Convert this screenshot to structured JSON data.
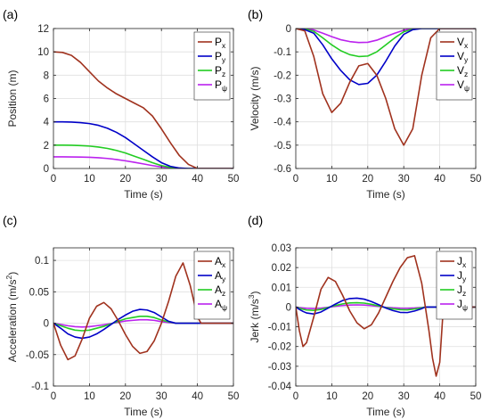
{
  "chart_data": [
    {
      "type": "line",
      "panel_label": "(a)",
      "xlabel": "Time (s)",
      "ylabel": "Position (m)",
      "xlim": [
        0,
        50
      ],
      "ylim": [
        0,
        12
      ],
      "xticks": [
        0,
        10,
        20,
        30,
        40,
        50
      ],
      "yticks": [
        0,
        2,
        4,
        6,
        8,
        10,
        12
      ],
      "grid": true,
      "legend_position": "top-right",
      "x": [
        0,
        2.5,
        5,
        7.5,
        10,
        12.5,
        15,
        17.5,
        20,
        22.5,
        25,
        27.5,
        30,
        32.5,
        35,
        37.5,
        40,
        45,
        50
      ],
      "series": [
        {
          "name_main": "P",
          "name_sub": "x",
          "color": "#A0321E",
          "values": [
            10.0,
            9.95,
            9.7,
            9.1,
            8.3,
            7.5,
            6.9,
            6.4,
            6.0,
            5.6,
            5.2,
            4.5,
            3.4,
            2.2,
            1.1,
            0.35,
            0.0,
            0.0,
            0.0
          ]
        },
        {
          "name_main": "P",
          "name_sub": "y",
          "color": "#0000C8",
          "values": [
            4.0,
            4.0,
            3.98,
            3.93,
            3.85,
            3.7,
            3.45,
            3.1,
            2.65,
            2.1,
            1.55,
            1.0,
            0.5,
            0.18,
            0.04,
            0.0,
            0.0,
            0.0,
            0.0
          ]
        },
        {
          "name_main": "P",
          "name_sub": "z",
          "color": "#22CC22",
          "values": [
            2.0,
            2.0,
            1.99,
            1.96,
            1.92,
            1.84,
            1.72,
            1.55,
            1.33,
            1.05,
            0.78,
            0.5,
            0.25,
            0.09,
            0.02,
            0.0,
            0.0,
            0.0,
            0.0
          ]
        },
        {
          "name_main": "P",
          "name_sub": "ψ",
          "color": "#BB22EE",
          "values": [
            1.0,
            1.0,
            0.99,
            0.98,
            0.96,
            0.92,
            0.86,
            0.77,
            0.66,
            0.53,
            0.39,
            0.25,
            0.13,
            0.05,
            0.01,
            0.0,
            0.0,
            0.0,
            0.0
          ]
        }
      ]
    },
    {
      "type": "line",
      "panel_label": "(b)",
      "xlabel": "Time (s)",
      "ylabel": "Velocity (m/s)",
      "xlim": [
        0,
        50
      ],
      "ylim": [
        -0.6,
        0
      ],
      "xticks": [
        0,
        10,
        20,
        30,
        40,
        50
      ],
      "yticks": [
        -0.6,
        -0.5,
        -0.4,
        -0.3,
        -0.2,
        -0.1,
        0
      ],
      "grid": true,
      "legend_position": "top-right",
      "x": [
        0,
        2.5,
        5,
        7.5,
        10,
        12.5,
        15,
        17.5,
        20,
        22.5,
        25,
        27.5,
        30,
        32.5,
        35,
        37.5,
        40,
        45,
        50
      ],
      "series": [
        {
          "name_main": "V",
          "name_sub": "x",
          "color": "#A0321E",
          "values": [
            0,
            -0.01,
            -0.12,
            -0.28,
            -0.36,
            -0.32,
            -0.23,
            -0.16,
            -0.15,
            -0.2,
            -0.3,
            -0.43,
            -0.5,
            -0.43,
            -0.2,
            -0.04,
            0,
            0,
            0
          ]
        },
        {
          "name_main": "V",
          "name_sub": "y",
          "color": "#0000C8",
          "values": [
            0,
            -0.005,
            -0.02,
            -0.07,
            -0.13,
            -0.18,
            -0.22,
            -0.24,
            -0.235,
            -0.2,
            -0.14,
            -0.075,
            -0.025,
            -0.005,
            0,
            0,
            0,
            0,
            0
          ]
        },
        {
          "name_main": "V",
          "name_sub": "z",
          "color": "#22CC22",
          "values": [
            0,
            -0.002,
            -0.012,
            -0.04,
            -0.07,
            -0.095,
            -0.112,
            -0.12,
            -0.118,
            -0.1,
            -0.07,
            -0.04,
            -0.014,
            -0.003,
            0,
            0,
            0,
            0,
            0
          ]
        },
        {
          "name_main": "V",
          "name_sub": "ψ",
          "color": "#BB22EE",
          "values": [
            0,
            -0.001,
            -0.006,
            -0.02,
            -0.035,
            -0.048,
            -0.056,
            -0.06,
            -0.059,
            -0.05,
            -0.035,
            -0.02,
            -0.007,
            -0.001,
            0,
            0,
            0,
            0,
            0
          ]
        }
      ]
    },
    {
      "type": "line",
      "panel_label": "(c)",
      "xlabel": "Time (s)",
      "ylabel_main": "Acceleration (m/s",
      "ylabel_sup": "2",
      "ylabel_end": ")",
      "xlim": [
        0,
        50
      ],
      "ylim": [
        -0.1,
        0.12
      ],
      "xticks": [
        0,
        10,
        20,
        30,
        40,
        50
      ],
      "yticks": [
        -0.1,
        -0.05,
        0,
        0.05,
        0.1
      ],
      "grid": true,
      "legend_position": "top-right",
      "x": [
        0,
        2,
        4,
        6,
        8,
        10,
        12,
        14,
        16,
        18,
        20,
        22,
        24,
        26,
        28,
        30,
        32,
        34,
        36,
        38,
        40,
        41,
        45,
        50
      ],
      "series": [
        {
          "name_main": "A",
          "name_sub": "x",
          "color": "#A0321E",
          "values": [
            0,
            -0.035,
            -0.058,
            -0.052,
            -0.025,
            0.008,
            0.027,
            0.033,
            0.023,
            0.004,
            -0.018,
            -0.037,
            -0.048,
            -0.045,
            -0.028,
            0.0,
            0.035,
            0.075,
            0.096,
            0.06,
            0.01,
            0.0,
            0.0,
            0.0
          ]
        },
        {
          "name_main": "A",
          "name_sub": "y",
          "color": "#0000C8",
          "values": [
            0,
            -0.008,
            -0.017,
            -0.022,
            -0.024,
            -0.022,
            -0.017,
            -0.01,
            -0.002,
            0.006,
            0.013,
            0.019,
            0.022,
            0.021,
            0.017,
            0.01,
            0.003,
            0.0,
            0.0,
            0.0,
            0.0,
            0.0,
            0.0,
            0.0
          ]
        },
        {
          "name_main": "A",
          "name_sub": "z",
          "color": "#22CC22",
          "values": [
            0,
            -0.004,
            -0.008,
            -0.011,
            -0.012,
            -0.011,
            -0.008,
            -0.005,
            -0.001,
            0.003,
            0.007,
            0.009,
            0.011,
            0.011,
            0.009,
            0.005,
            0.002,
            0.0,
            0.0,
            0.0,
            0.0,
            0.0,
            0.0,
            0.0
          ]
        },
        {
          "name_main": "A",
          "name_sub": "ψ",
          "color": "#BB22EE",
          "values": [
            0,
            -0.002,
            -0.004,
            -0.0055,
            -0.006,
            -0.0055,
            -0.004,
            -0.0025,
            -0.0005,
            0.0015,
            0.0035,
            0.0045,
            0.0055,
            0.0055,
            0.0045,
            0.0025,
            0.001,
            0.0,
            0.0,
            0.0,
            0.0,
            0.0,
            0.0,
            0.0
          ]
        }
      ]
    },
    {
      "type": "line",
      "panel_label": "(d)",
      "xlabel": "Time (s)",
      "ylabel_main": "Jerk (m/s",
      "ylabel_sup": "3",
      "ylabel_end": ")",
      "xlim": [
        0,
        50
      ],
      "ylim": [
        -0.04,
        0.03
      ],
      "xticks": [
        0,
        10,
        20,
        30,
        40,
        50
      ],
      "yticks": [
        -0.04,
        -0.03,
        -0.02,
        -0.01,
        0,
        0.01,
        0.02,
        0.03
      ],
      "grid": true,
      "legend_position": "top-right",
      "x": [
        0,
        1,
        2,
        3,
        5,
        7,
        9,
        11,
        13,
        15,
        17,
        19,
        21,
        23,
        25,
        27,
        29,
        31,
        33,
        35,
        36,
        37,
        38,
        39,
        40,
        41,
        45,
        50
      ],
      "series": [
        {
          "name_main": "J",
          "name_sub": "x",
          "color": "#A0321E",
          "values": [
            0,
            -0.012,
            -0.02,
            -0.018,
            -0.005,
            0.009,
            0.015,
            0.013,
            0.006,
            -0.002,
            -0.008,
            -0.011,
            -0.009,
            -0.003,
            0.005,
            0.013,
            0.02,
            0.025,
            0.026,
            0.012,
            0.0,
            -0.012,
            -0.026,
            -0.035,
            -0.028,
            0.0,
            0.0,
            0.0
          ]
        },
        {
          "name_main": "J",
          "name_sub": "y",
          "color": "#0000C8",
          "values": [
            0,
            -0.0012,
            -0.0022,
            -0.003,
            -0.0035,
            -0.0025,
            -0.0005,
            0.0015,
            0.0033,
            0.0043,
            0.0045,
            0.004,
            0.0028,
            0.0012,
            -0.0005,
            -0.0018,
            -0.0027,
            -0.0028,
            -0.002,
            -0.0008,
            0.0,
            0.0,
            0.0,
            0.0,
            0.0,
            0.0,
            0.0,
            0.0
          ]
        },
        {
          "name_main": "J",
          "name_sub": "z",
          "color": "#22CC22",
          "values": [
            0,
            -0.0006,
            -0.0011,
            -0.0015,
            -0.0017,
            -0.0012,
            -0.0002,
            0.0008,
            0.0016,
            0.0021,
            0.0022,
            0.002,
            0.0014,
            0.0006,
            -0.0003,
            -0.0009,
            -0.0013,
            -0.0014,
            -0.001,
            -0.0004,
            0.0,
            0.0,
            0.0,
            0.0,
            0.0,
            0.0,
            0.0,
            0.0
          ]
        },
        {
          "name_main": "J",
          "name_sub": "ψ",
          "color": "#BB22EE",
          "values": [
            0,
            -0.0003,
            -0.0005,
            -0.0007,
            -0.0008,
            -0.0006,
            -0.0001,
            0.0004,
            0.0008,
            0.001,
            0.0011,
            0.001,
            0.0007,
            0.0003,
            -0.0001,
            -0.0004,
            -0.0006,
            -0.0007,
            -0.0005,
            -0.0002,
            0.0,
            0.0,
            0.0,
            0.0,
            0.0,
            0.0,
            0.0,
            0.0
          ]
        }
      ]
    }
  ]
}
